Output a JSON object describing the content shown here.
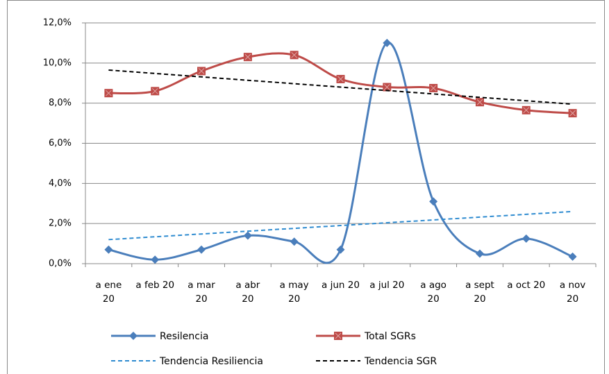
{
  "chart_data": {
    "type": "line",
    "categories": [
      "a ene 20",
      "a feb 20",
      "a mar 20",
      "a abr 20",
      "a may 20",
      "a jun 20",
      "a jul 20",
      "a ago 20",
      "a sept 20",
      "a oct 20",
      "a nov 20"
    ],
    "series": [
      {
        "name": "Resilencia",
        "color": "#4a7ebb",
        "marker": "diamond",
        "smooth": true,
        "values": [
          0.7,
          0.2,
          0.7,
          1.4,
          1.1,
          0.7,
          11.0,
          3.1,
          0.5,
          1.25,
          0.35
        ]
      },
      {
        "name": "Total SGRs",
        "color": "#be4b48",
        "marker": "square",
        "smooth": true,
        "values": [
          8.5,
          8.6,
          9.6,
          10.3,
          10.4,
          9.2,
          8.8,
          8.75,
          8.05,
          7.65,
          7.5
        ]
      },
      {
        "name": "Tendencia Resiliencia",
        "color": "#2e8bd0",
        "dashed": true,
        "values": [
          1.2,
          1.34,
          1.48,
          1.62,
          1.76,
          1.9,
          2.04,
          2.18,
          2.32,
          2.46,
          2.6
        ]
      },
      {
        "name": "Tendencia SGR",
        "color": "#000000",
        "dashed": true,
        "values": [
          9.65,
          9.48,
          9.31,
          9.14,
          8.97,
          8.8,
          8.63,
          8.46,
          8.29,
          8.12,
          7.95
        ]
      }
    ],
    "ylim": [
      0,
      12
    ],
    "yticks": [
      {
        "value": 0,
        "label": "0,0%"
      },
      {
        "value": 2,
        "label": "2,0%"
      },
      {
        "value": 4,
        "label": "4,0%"
      },
      {
        "value": 6,
        "label": "6,0%"
      },
      {
        "value": 8,
        "label": "8,0%"
      },
      {
        "value": 10,
        "label": "10,0%"
      },
      {
        "value": 12,
        "label": "12,0%"
      }
    ],
    "grid": true,
    "legend": "bottom"
  }
}
